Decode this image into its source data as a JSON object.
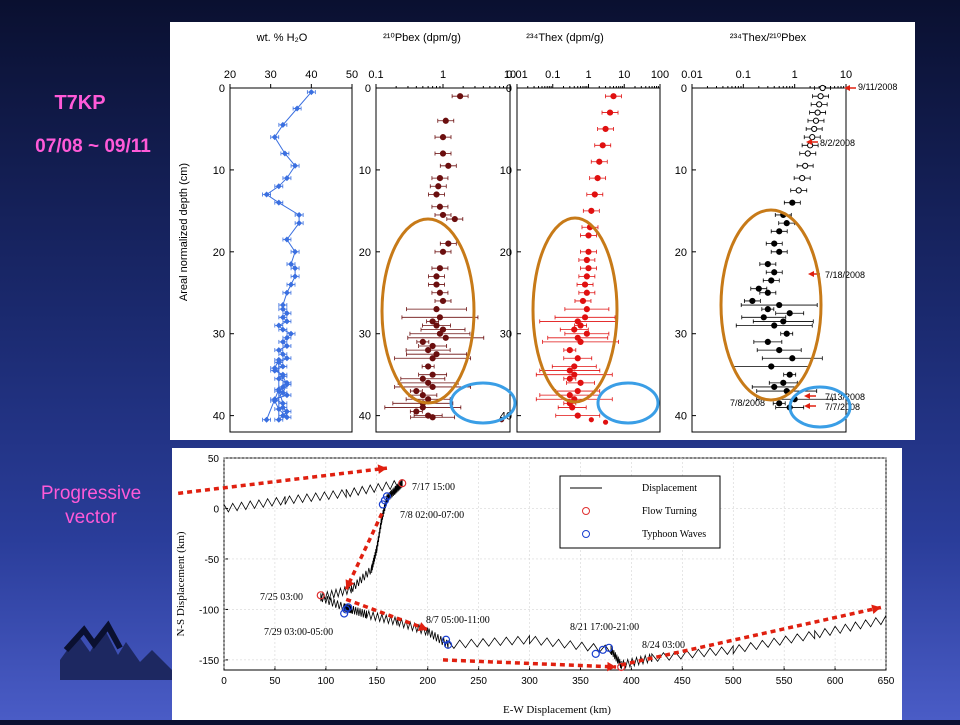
{
  "labels": {
    "station": "T7KP",
    "period": "07/08 ~ 09/11",
    "progressive_line1": "Progressive",
    "progressive_line2": "vector"
  },
  "colors": {
    "water": "#3a6fe0",
    "pb": "#6b0f0f",
    "th": "#e01010",
    "ratio": "#000000",
    "orange_ellipse": "#c77a18",
    "blue_ellipse": "#3a9ee6",
    "arrow": "#e02010",
    "typhoon": "#1a3fd0",
    "turning": "#e03030"
  },
  "chart_data": [
    {
      "type": "scatter",
      "panel": "water",
      "title": "wt. % H₂O",
      "ylabel": "Areal normalized depth (cm)",
      "xlim": [
        20,
        50
      ],
      "ylim": [
        0,
        42
      ],
      "xticks": [
        "20",
        "30",
        "40",
        "50"
      ],
      "yticks": [
        "0",
        "10",
        "20",
        "30",
        "40"
      ],
      "x": [
        40,
        36.5,
        33,
        31,
        33.5,
        36,
        34,
        32,
        29,
        32,
        37,
        37,
        34,
        36,
        35,
        36,
        36,
        35,
        34,
        33,
        33,
        34,
        33,
        34,
        32,
        33,
        35,
        34,
        33,
        34,
        32,
        33,
        34,
        32,
        33,
        31,
        33,
        32,
        34,
        33,
        32,
        34,
        31,
        33,
        33,
        34,
        33,
        32,
        32,
        31,
        33,
        34,
        33,
        31,
        32,
        34,
        32,
        29
      ],
      "y": [
        0.5,
        2.5,
        4.5,
        6,
        8,
        9.5,
        11,
        12,
        13,
        14,
        15.5,
        16.5,
        18.5,
        20,
        21.5,
        22,
        23,
        24,
        25,
        26.5,
        27,
        27.5,
        28,
        28.5,
        29,
        29.5,
        30,
        30.5,
        31,
        31.5,
        32,
        32.5,
        33,
        33.5,
        34,
        34.5,
        35,
        35.5,
        36,
        36.5,
        37,
        37.5,
        38,
        38.5,
        39,
        39.5,
        40,
        40.5,
        33.2,
        34.2,
        35.2,
        36.2,
        37.2,
        38.2,
        39.2,
        40.2,
        36.8,
        40.5
      ]
    },
    {
      "type": "scatter",
      "panel": "pb",
      "title": "²¹⁰Pbex (dpm/g)",
      "xscale": "log",
      "xlim": [
        0.1,
        10
      ],
      "ylim": [
        0,
        42
      ],
      "xticks": [
        "0.1",
        "1",
        "10"
      ],
      "yticks": [
        "0",
        "10",
        "20",
        "30",
        "40"
      ],
      "x": [
        1.8,
        1.1,
        1.0,
        1.0,
        1.2,
        0.9,
        0.85,
        0.8,
        0.9,
        1.0,
        1.5,
        1.2,
        1.0,
        0.9,
        0.8,
        0.8,
        0.9,
        1.0,
        0.8,
        0.9,
        0.7,
        0.8,
        1.0,
        0.9,
        1.1,
        0.5,
        0.7,
        0.6,
        0.8,
        0.7,
        0.6,
        0.7,
        0.5,
        0.6,
        0.7,
        0.4,
        0.5,
        0.6,
        0.5,
        0.5,
        0.4,
        0.6,
        0.7
      ],
      "y": [
        1,
        4,
        6,
        8,
        9.5,
        11,
        12,
        13,
        14.5,
        15.5,
        16,
        19,
        20,
        22,
        23,
        24,
        25,
        26,
        27,
        28,
        28.5,
        29,
        29.5,
        30,
        30.5,
        31,
        31.5,
        32,
        32.5,
        33,
        34,
        35,
        35.5,
        36,
        36.5,
        37,
        37.5,
        38,
        38.5,
        39,
        39.5,
        40,
        40.2
      ],
      "highlight_points": {
        "x": [
          7.5
        ],
        "y": [
          40.5
        ]
      }
    },
    {
      "type": "scatter",
      "panel": "th",
      "title": "²³⁴Thex (dpm/g)",
      "xscale": "log",
      "xlim": [
        0.01,
        100
      ],
      "ylim": [
        0,
        42
      ],
      "xticks": [
        "0.01",
        "0.1",
        "1",
        "10",
        "100"
      ],
      "yticks": [
        "0",
        "10",
        "20",
        "30",
        "40"
      ],
      "x": [
        5,
        4,
        3,
        2.5,
        2,
        1.8,
        1.5,
        1.2,
        1.1,
        1.0,
        1.0,
        0.9,
        1.0,
        0.9,
        0.8,
        0.9,
        0.7,
        0.9,
        0.8,
        0.5,
        0.6,
        0.4,
        0.9,
        0.5,
        0.6,
        0.3,
        0.5,
        0.4,
        0.3,
        0.4,
        0.3,
        0.6,
        0.5,
        0.3,
        0.4,
        0.3,
        0.35,
        0.5
      ],
      "y": [
        1,
        3,
        5,
        7,
        9,
        11,
        13,
        15,
        17,
        18,
        20,
        21,
        22,
        23,
        24,
        25,
        26,
        27,
        28,
        28.5,
        29,
        29.5,
        30,
        30.5,
        31,
        32,
        33,
        34,
        34.5,
        35,
        35.5,
        36,
        37,
        37.5,
        38,
        38.5,
        39,
        40
      ],
      "highlight_points": {
        "x": [
          1.2,
          3.0
        ],
        "y": [
          40.5,
          40.8
        ]
      }
    },
    {
      "type": "scatter",
      "panel": "ratio",
      "title": "²³⁴Thex/²¹⁰Pbex",
      "xscale": "log",
      "xlim": [
        0.01,
        10
      ],
      "ylim": [
        0,
        42
      ],
      "xticks": [
        "0.01",
        "0.1",
        "1",
        "10"
      ],
      "yticks": [
        "0",
        "10",
        "20",
        "30",
        "40"
      ],
      "x": [
        3.5,
        3.2,
        3,
        2.8,
        2.6,
        2.4,
        2.2,
        2.0,
        1.8,
        1.6,
        1.4,
        1.2,
        0.9,
        0.6,
        0.7,
        0.5,
        0.4,
        0.5,
        0.3,
        0.4,
        0.35,
        0.2,
        0.3,
        0.15,
        0.5,
        0.3,
        0.8,
        0.25,
        0.6,
        0.4,
        0.7,
        0.3,
        0.5,
        0.9,
        0.35,
        0.8,
        0.6,
        0.4,
        0.7,
        1.0,
        0.5,
        0.8
      ],
      "y": [
        0,
        1,
        2,
        3,
        4,
        5,
        6,
        7,
        8,
        9.5,
        11,
        12.5,
        14,
        15.5,
        16.5,
        17.5,
        19,
        20,
        21.5,
        22.5,
        23.5,
        24.5,
        25,
        26,
        26.5,
        27,
        27.5,
        28,
        28.5,
        29,
        30,
        31,
        32,
        33,
        34,
        35,
        36,
        36.5,
        37,
        38,
        38.5,
        39
      ],
      "annotations": [
        "9/11/2008",
        "8/2/2008",
        "7/18/2008",
        "7/13/2008",
        "7/7/2008",
        "7/8/2008"
      ]
    },
    {
      "type": "line",
      "panel": "progressive",
      "xlabel": "E-W Displacement (km)",
      "ylabel": "N-S Displacement (km)",
      "xlim": [
        0,
        650
      ],
      "ylim": [
        -160,
        50
      ],
      "xticks": [
        "0",
        "50",
        "100",
        "150",
        "200",
        "250",
        "300",
        "350",
        "400",
        "450",
        "500",
        "550",
        "600",
        "650"
      ],
      "yticks": [
        "50",
        "0",
        "-50",
        "-100",
        "-150"
      ],
      "legend": {
        "position": "top-right",
        "entries": [
          "Displacement",
          "Flow Turning",
          "Typhoon Waves"
        ]
      },
      "path": [
        [
          0,
          0
        ],
        [
          60,
          8
        ],
        [
          120,
          15
        ],
        [
          175,
          25
        ],
        [
          168,
          18
        ],
        [
          160,
          10
        ],
        [
          155,
          -10
        ],
        [
          150,
          -40
        ],
        [
          145,
          -60
        ],
        [
          125,
          -80
        ],
        [
          95,
          -88
        ],
        [
          118,
          -98
        ],
        [
          125,
          -100
        ],
        [
          140,
          -105
        ],
        [
          170,
          -112
        ],
        [
          200,
          -122
        ],
        [
          220,
          -135
        ],
        [
          300,
          -130
        ],
        [
          380,
          -140
        ],
        [
          390,
          -155
        ],
        [
          420,
          -148
        ],
        [
          500,
          -140
        ],
        [
          580,
          -125
        ],
        [
          650,
          -110
        ]
      ],
      "flow_turning": {
        "x": [
          175,
          95,
          390
        ],
        "y": [
          25,
          -86,
          -157
        ]
      },
      "typhoon_waves": {
        "x": [
          160,
          158,
          156,
          120,
          118,
          122,
          218,
          220,
          365,
          372,
          378
        ],
        "y": [
          12,
          8,
          4,
          -100,
          -104,
          -98,
          -130,
          -135,
          -144,
          -140,
          -138
        ]
      },
      "annotations": [
        "7/17 15:00",
        "7/8 02:00-07:00",
        "7/25 03:00",
        "7/29 03:00-05:00",
        "8/7 05:00-11:00",
        "8/21 17:00-21:00",
        "8/24 03:00"
      ]
    }
  ]
}
